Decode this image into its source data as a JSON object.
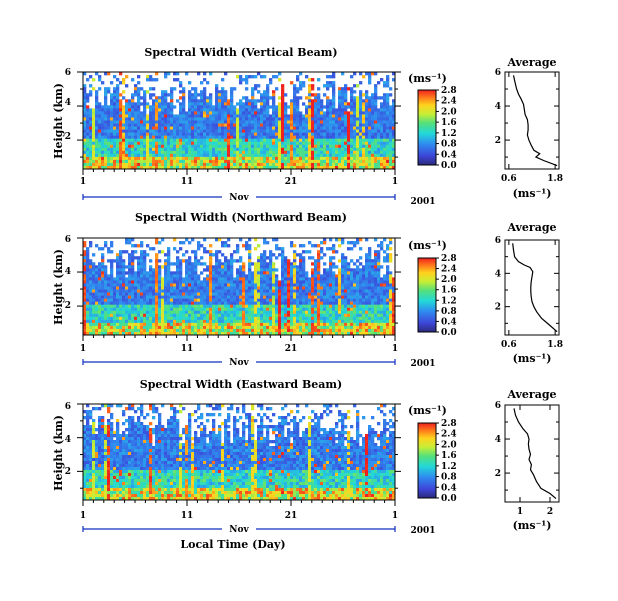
{
  "figure": {
    "x_axis_label": "Local Time (Day)",
    "month_label": "Nov",
    "year_label": "2001",
    "colorbar_unit_label": "(ms⁻¹)",
    "avg_unit_label": "(ms⁻¹)",
    "y_axis_label": "Height (km)"
  },
  "chart_data": [
    {
      "type": "heatmap",
      "title": "Spectral Width (Vertical Beam)",
      "xlabel": "",
      "ylabel": "Height (km)",
      "x_ticks": [
        "1",
        "11",
        "21",
        "1"
      ],
      "y_ticks": [
        "2",
        "4",
        "6"
      ],
      "ylim": [
        0.3,
        6.0
      ],
      "colorbar": {
        "ticks": [
          "2.8",
          "2.4",
          "2.0",
          "1.6",
          "1.2",
          "0.8",
          "0.4",
          "0.0"
        ],
        "range": [
          0,
          2.8
        ]
      },
      "average_profile": {
        "title": "Average",
        "x_ticks": [
          "0.6",
          "1.8"
        ],
        "y_ticks": [
          "2",
          "4",
          "6"
        ],
        "xlim": [
          0.5,
          1.9
        ],
        "x": [
          0.72,
          0.76,
          0.8,
          0.85,
          0.92,
          0.98,
          1.0,
          1.02,
          1.08,
          1.1,
          1.1,
          1.08,
          1.12,
          1.18,
          1.25,
          1.4,
          1.3,
          1.5,
          1.85
        ],
        "y": [
          5.8,
          5.4,
          5.0,
          4.7,
          4.4,
          4.1,
          3.8,
          3.5,
          3.2,
          2.9,
          2.6,
          2.3,
          2.0,
          1.7,
          1.4,
          1.2,
          1.0,
          0.8,
          0.5
        ]
      }
    },
    {
      "type": "heatmap",
      "title": "Spectral Width (Northward Beam)",
      "xlabel": "",
      "ylabel": "Height (km)",
      "x_ticks": [
        "1",
        "11",
        "21",
        "1"
      ],
      "y_ticks": [
        "2",
        "4",
        "6"
      ],
      "ylim": [
        0.3,
        6.0
      ],
      "colorbar": {
        "ticks": [
          "2.8",
          "2.4",
          "2.0",
          "1.6",
          "1.2",
          "0.8",
          "0.4",
          "0.0"
        ],
        "range": [
          0,
          2.8
        ]
      },
      "average_profile": {
        "title": "Average",
        "x_ticks": [
          "0.6",
          "1.8"
        ],
        "y_ticks": [
          "2",
          "4",
          "6"
        ],
        "xlim": [
          0.5,
          1.9
        ],
        "x": [
          0.7,
          0.72,
          0.75,
          0.85,
          1.0,
          1.15,
          1.22,
          1.2,
          1.18,
          1.17,
          1.17,
          1.18,
          1.2,
          1.25,
          1.32,
          1.45,
          1.65,
          1.85
        ],
        "y": [
          5.8,
          5.4,
          5.0,
          4.7,
          4.5,
          4.35,
          4.1,
          3.8,
          3.5,
          3.2,
          2.9,
          2.6,
          2.3,
          2.0,
          1.7,
          1.3,
          0.9,
          0.5
        ]
      }
    },
    {
      "type": "heatmap",
      "title": "Spectral Width (Eastward Beam)",
      "xlabel": "Local Time (Day)",
      "ylabel": "Height (km)",
      "x_ticks": [
        "1",
        "11",
        "21",
        "1"
      ],
      "y_ticks": [
        "2",
        "4",
        "6"
      ],
      "ylim": [
        0.3,
        6.0
      ],
      "colorbar": {
        "ticks": [
          "2.8",
          "2.4",
          "2.0",
          "1.6",
          "1.2",
          "0.8",
          "0.4",
          "0.0"
        ],
        "range": [
          0,
          2.8
        ]
      },
      "average_profile": {
        "title": "Average",
        "x_ticks": [
          "1",
          "2"
        ],
        "y_ticks": [
          "2",
          "4",
          "6"
        ],
        "xlim": [
          0.5,
          2.3
        ],
        "x": [
          0.8,
          0.85,
          0.95,
          1.1,
          1.25,
          1.3,
          1.28,
          1.3,
          1.35,
          1.3,
          1.38,
          1.35,
          1.45,
          1.55,
          1.7,
          2.0,
          2.2
        ],
        "y": [
          5.8,
          5.4,
          5.0,
          4.6,
          4.3,
          4.0,
          3.7,
          3.4,
          3.1,
          2.8,
          2.5,
          2.2,
          1.9,
          1.5,
          1.1,
          0.8,
          0.5
        ]
      }
    }
  ]
}
